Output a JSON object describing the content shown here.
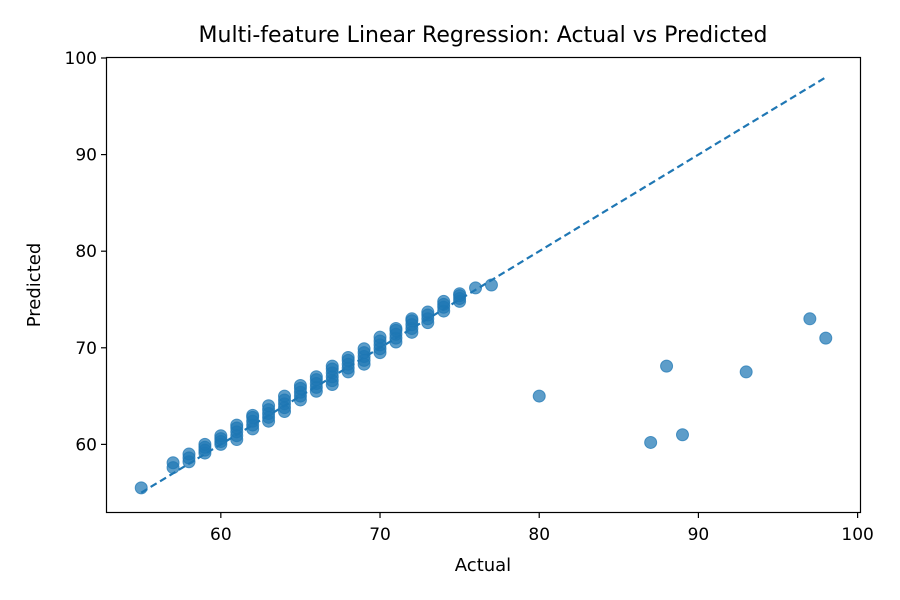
{
  "chart_data": {
    "type": "scatter",
    "title": "Multi-feature Linear Regression: Actual vs Predicted",
    "xlabel": "Actual",
    "ylabel": "Predicted",
    "xlim": [
      52.85,
      100.15
    ],
    "ylim": [
      53.0,
      100.0
    ],
    "xticks": [
      60,
      70,
      80,
      90,
      100
    ],
    "yticks": [
      60,
      70,
      80,
      90,
      100
    ],
    "grid": false,
    "colors": {
      "points": "#1f77b4",
      "reference_line": "#1f77b4"
    },
    "reference_line": {
      "style": "dashed",
      "x": [
        55,
        98
      ],
      "y": [
        55,
        98
      ]
    },
    "points": [
      [
        55,
        55.5
      ],
      [
        57,
        57.6
      ],
      [
        57,
        58.1
      ],
      [
        58,
        58.2
      ],
      [
        58,
        58.6
      ],
      [
        58,
        59.0
      ],
      [
        59,
        59.1
      ],
      [
        59,
        59.4
      ],
      [
        59,
        59.7
      ],
      [
        59,
        60.0
      ],
      [
        60,
        60.0
      ],
      [
        60,
        60.3
      ],
      [
        60,
        60.6
      ],
      [
        60,
        60.9
      ],
      [
        61,
        60.5
      ],
      [
        61,
        60.9
      ],
      [
        61,
        61.3
      ],
      [
        61,
        61.7
      ],
      [
        61,
        62.0
      ],
      [
        62,
        61.6
      ],
      [
        62,
        62.0
      ],
      [
        62,
        62.4
      ],
      [
        62,
        62.8
      ],
      [
        62,
        63.0
      ],
      [
        63,
        62.4
      ],
      [
        63,
        62.8
      ],
      [
        63,
        63.2
      ],
      [
        63,
        63.6
      ],
      [
        63,
        64.0
      ],
      [
        64,
        63.4
      ],
      [
        64,
        63.8
      ],
      [
        64,
        64.2
      ],
      [
        64,
        64.6
      ],
      [
        64,
        65.0
      ],
      [
        65,
        64.6
      ],
      [
        65,
        65.0
      ],
      [
        65,
        65.4
      ],
      [
        65,
        65.8
      ],
      [
        65,
        66.1
      ],
      [
        66,
        65.5
      ],
      [
        66,
        65.9
      ],
      [
        66,
        66.3
      ],
      [
        66,
        66.7
      ],
      [
        66,
        67.0
      ],
      [
        67,
        66.2
      ],
      [
        67,
        66.6
      ],
      [
        67,
        67.0
      ],
      [
        67,
        67.4
      ],
      [
        67,
        67.8
      ],
      [
        67,
        68.1
      ],
      [
        68,
        67.5
      ],
      [
        68,
        67.9
      ],
      [
        68,
        68.3
      ],
      [
        68,
        68.7
      ],
      [
        68,
        69.0
      ],
      [
        69,
        68.3
      ],
      [
        69,
        68.7
      ],
      [
        69,
        69.1
      ],
      [
        69,
        69.5
      ],
      [
        69,
        69.9
      ],
      [
        70,
        69.5
      ],
      [
        70,
        69.9
      ],
      [
        70,
        70.3
      ],
      [
        70,
        70.7
      ],
      [
        70,
        71.1
      ],
      [
        71,
        70.6
      ],
      [
        71,
        71.0
      ],
      [
        71,
        71.4
      ],
      [
        71,
        71.8
      ],
      [
        71,
        72.0
      ],
      [
        72,
        71.6
      ],
      [
        72,
        72.0
      ],
      [
        72,
        72.4
      ],
      [
        72,
        72.8
      ],
      [
        72,
        73.0
      ],
      [
        73,
        72.6
      ],
      [
        73,
        73.0
      ],
      [
        73,
        73.4
      ],
      [
        73,
        73.7
      ],
      [
        74,
        73.8
      ],
      [
        74,
        74.2
      ],
      [
        74,
        74.5
      ],
      [
        74,
        74.8
      ],
      [
        75,
        74.8
      ],
      [
        75,
        75.1
      ],
      [
        75,
        75.4
      ],
      [
        75,
        75.6
      ],
      [
        76,
        76.2
      ],
      [
        77,
        76.5
      ],
      [
        80,
        65.0
      ],
      [
        87,
        60.2
      ],
      [
        88,
        68.1
      ],
      [
        89,
        61.0
      ],
      [
        93,
        67.5
      ],
      [
        97,
        73.0
      ],
      [
        98,
        71.0
      ]
    ]
  }
}
